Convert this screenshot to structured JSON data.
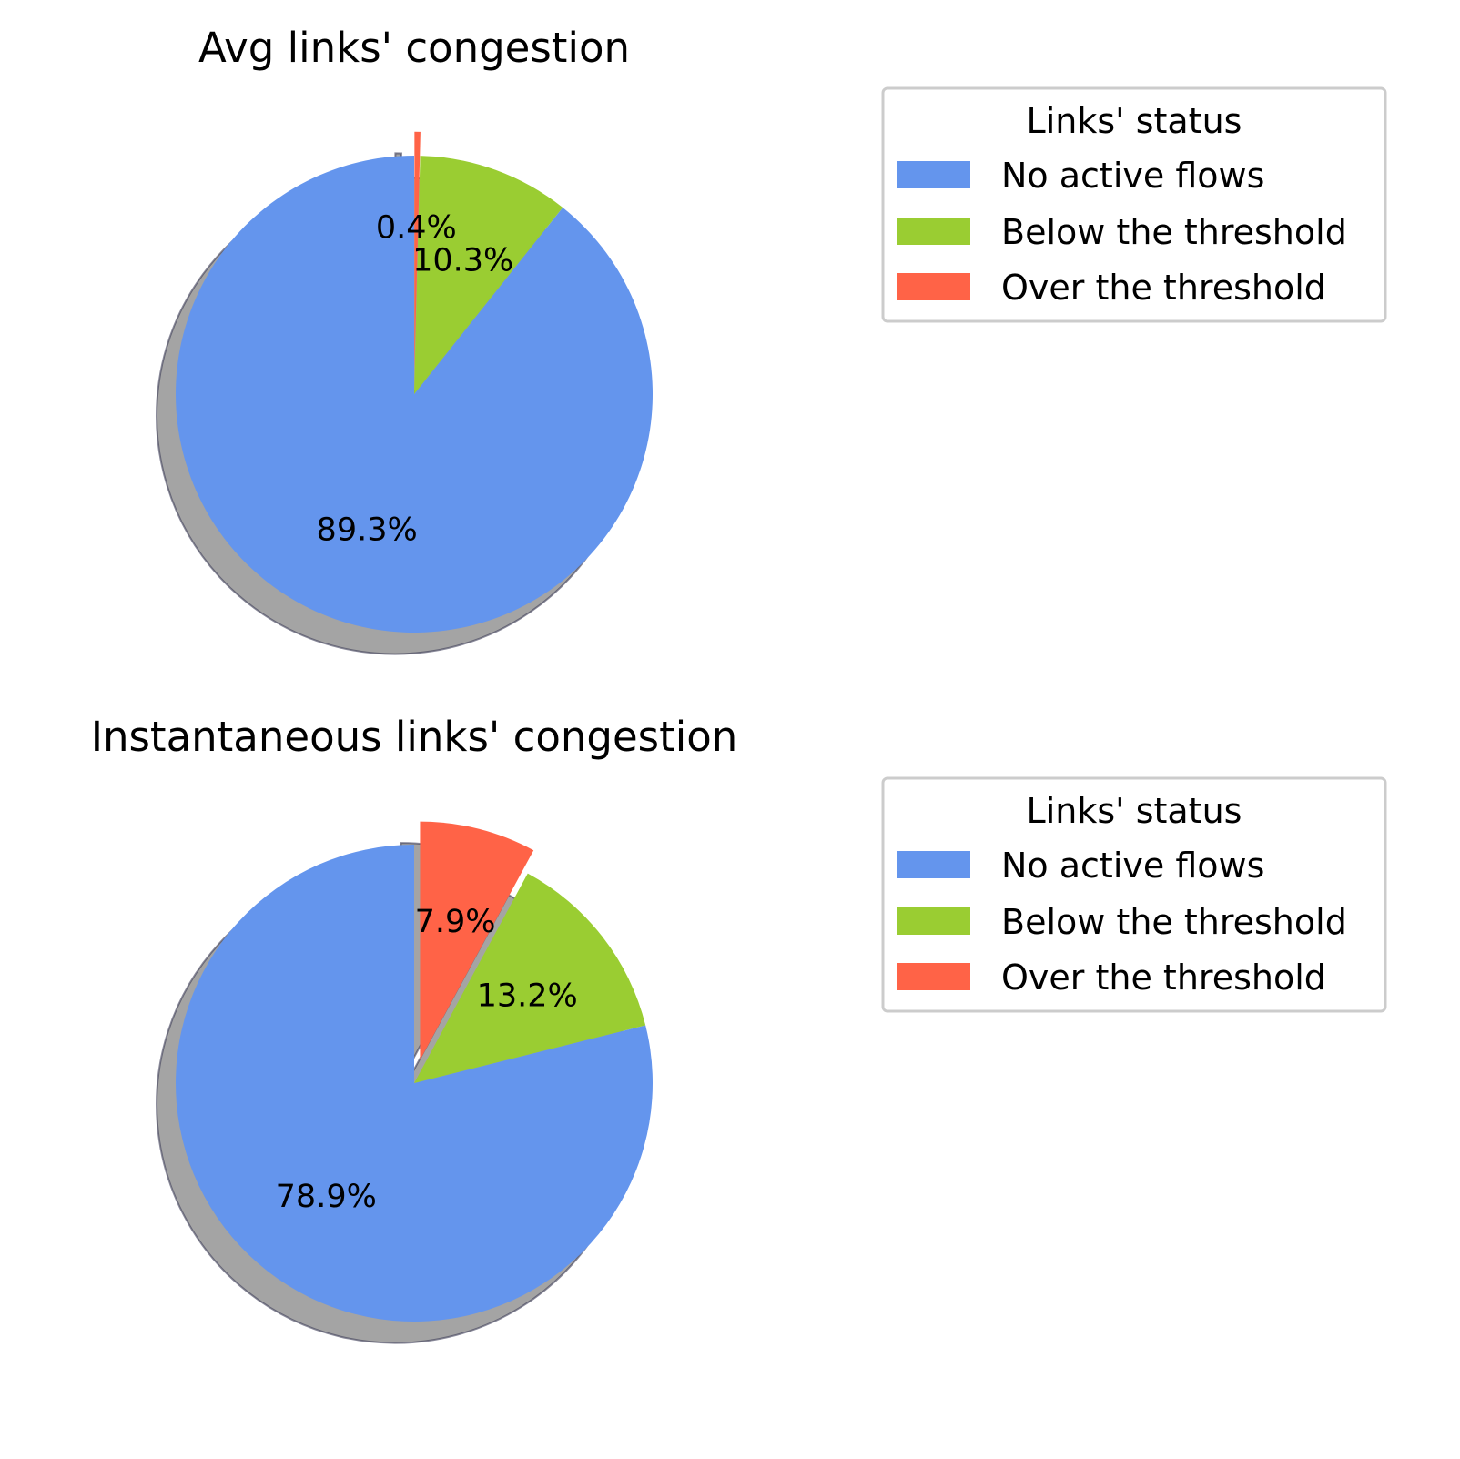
{
  "chart_data": [
    {
      "type": "pie",
      "title": "Avg links' congestion",
      "slices": [
        {
          "label": "No active flows",
          "value": 89.3,
          "label_text": "89.3%",
          "color": "#6495ED",
          "exploded": false
        },
        {
          "label": "Below the threshold",
          "value": 10.3,
          "label_text": "10.3%",
          "color": "#9ACD32",
          "exploded": false
        },
        {
          "label": "Over the threshold",
          "value": 0.4,
          "label_text": "0.4%",
          "color": "#FF6347",
          "exploded": true
        }
      ],
      "shadow": true,
      "start_angle_deg": 90,
      "direction": "counterclockwise",
      "legend": {
        "title": "Links' status",
        "placement": "right"
      }
    },
    {
      "type": "pie",
      "title": "Instantaneous links' congestion",
      "slices": [
        {
          "label": "No active flows",
          "value": 78.9,
          "label_text": "78.9%",
          "color": "#6495ED",
          "exploded": false
        },
        {
          "label": "Below the threshold",
          "value": 13.2,
          "label_text": "13.2%",
          "color": "#9ACD32",
          "exploded": false
        },
        {
          "label": "Over the threshold",
          "value": 7.9,
          "label_text": "7.9%",
          "color": "#FF6347",
          "exploded": true
        }
      ],
      "shadow": true,
      "start_angle_deg": 90,
      "direction": "counterclockwise",
      "legend": {
        "title": "Links' status",
        "placement": "right"
      }
    }
  ]
}
